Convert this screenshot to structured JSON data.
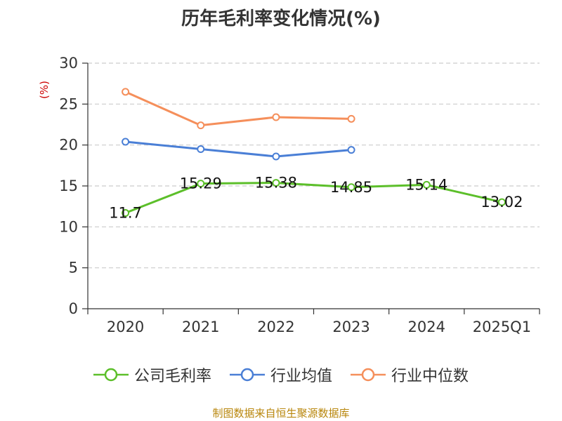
{
  "chart_data": {
    "type": "line",
    "title": "历年毛利率变化情况(%)",
    "ylabel": "(%)",
    "xlabel": "",
    "ylim": [
      0,
      30
    ],
    "yticks": [
      0,
      5,
      10,
      15,
      20,
      25,
      30
    ],
    "categories": [
      "2020",
      "2021",
      "2022",
      "2023",
      "2024",
      "2025Q1"
    ],
    "series": [
      {
        "name": "公司毛利率",
        "color": "#5cbf2a",
        "values": [
          11.7,
          15.29,
          15.38,
          14.85,
          15.14,
          13.02
        ],
        "labels": [
          "11.7",
          "15.29",
          "15.38",
          "14.85",
          "15.14",
          "13.02"
        ]
      },
      {
        "name": "行业均值",
        "color": "#4a7fd6",
        "values": [
          20.4,
          19.5,
          18.6,
          19.4,
          null,
          null
        ]
      },
      {
        "name": "行业中位数",
        "color": "#f58f5b",
        "values": [
          26.5,
          22.4,
          23.4,
          23.2,
          null,
          null
        ]
      }
    ],
    "grid": true,
    "legend_position": "bottom"
  },
  "colors": {
    "axis": "#333333",
    "grid": "#cccccc",
    "ylabel": "#cc0000"
  },
  "footer": {
    "source": "制图数据来自恒生聚源数据库"
  }
}
